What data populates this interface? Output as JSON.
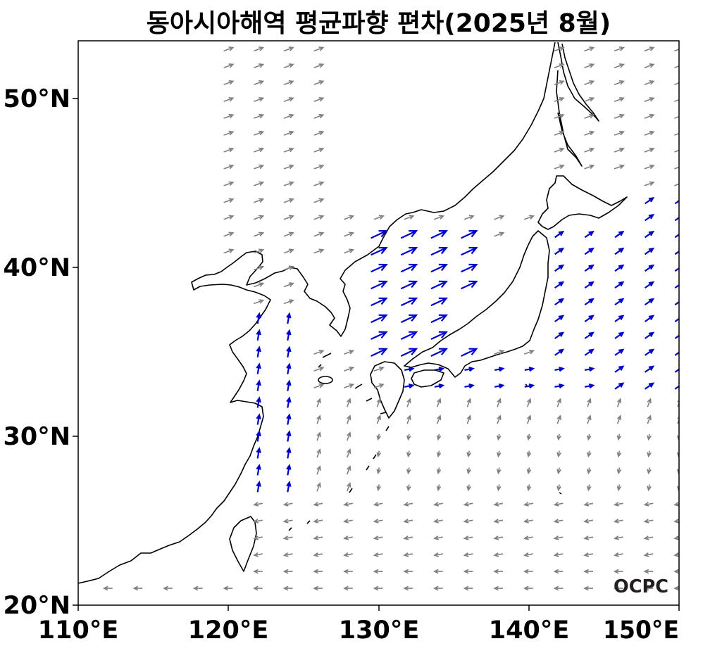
{
  "title": "동아시아해역 평균파향 편차(2025년 8월)",
  "map": {
    "lon_range": [
      110,
      150
    ],
    "lat_range": [
      20,
      53.5
    ],
    "x_ticks": [
      "110°E",
      "120°E",
      "130°E",
      "140°E",
      "150°E"
    ],
    "y_ticks": [
      "20°N",
      "30°N",
      "40°N",
      "50°N"
    ],
    "arrow_colors": {
      "significant": "#0000cc",
      "normal": "#808080"
    },
    "coastline_color": "#000000"
  },
  "logo": {
    "text": "OCPC"
  }
}
